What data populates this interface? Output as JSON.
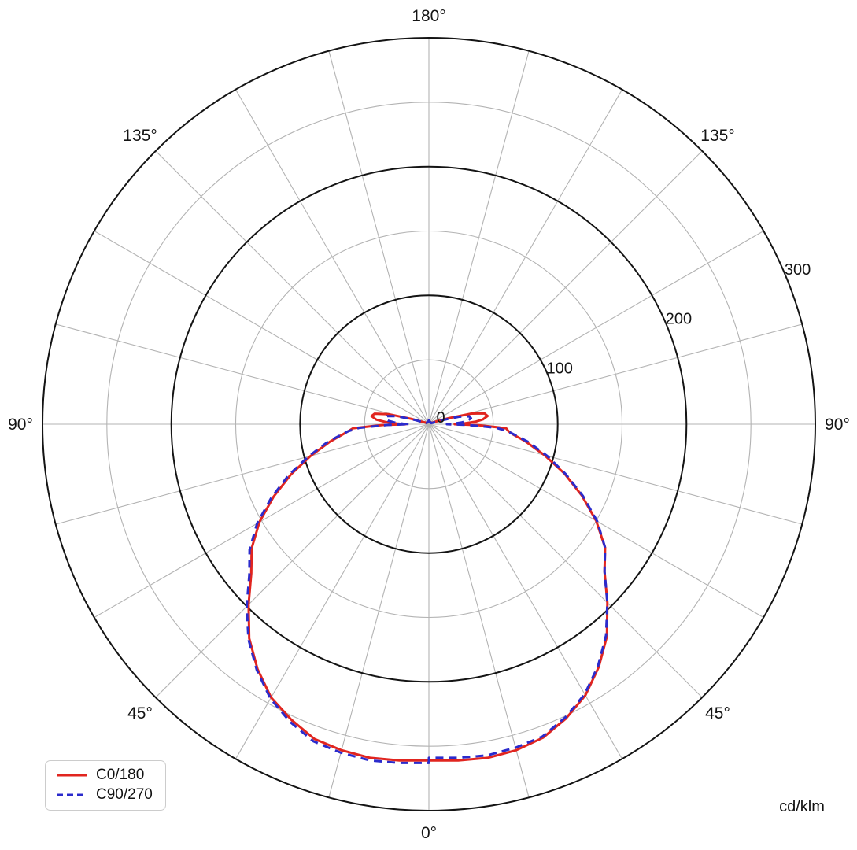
{
  "chart_data": {
    "type": "polar",
    "subtype": "luminous-intensity-distribution",
    "title": "",
    "unit": "cd/klm",
    "radial_axis": {
      "max": 300,
      "major_ticks": [
        0,
        100,
        200,
        300
      ],
      "minor_ticks": [
        50,
        150,
        250
      ],
      "tick_label_ray_deg_above_horizontal": 22.5
    },
    "angle_grid_step_deg": 15,
    "angle_labels": [
      {
        "text": "0°",
        "gamma_deg": 0,
        "sides": [
          "center"
        ]
      },
      {
        "text": "45°",
        "gamma_deg": 45,
        "sides": [
          "right",
          "left"
        ]
      },
      {
        "text": "90°",
        "gamma_deg": 90,
        "sides": [
          "right",
          "left"
        ]
      },
      {
        "text": "135°",
        "gamma_deg": 135,
        "sides": [
          "right",
          "left"
        ]
      },
      {
        "text": "180°",
        "gamma_deg": 180,
        "sides": [
          "center"
        ]
      }
    ],
    "grid": {
      "major_color": "#141414",
      "minor_color": "#b3b3b3",
      "text_color": "#141414"
    },
    "gamma_deg": [
      0,
      5,
      10,
      15,
      20,
      25,
      30,
      35,
      40,
      45,
      50,
      55,
      60,
      65,
      70,
      75,
      80,
      83,
      85,
      87,
      89,
      90,
      91,
      93,
      95,
      98,
      101,
      104,
      107,
      110,
      115,
      120,
      135,
      150,
      165,
      180
    ],
    "series": [
      {
        "name": "C0/180",
        "color": "#e1251f",
        "line_style": "solid",
        "right_cd_klm": [
          261,
          262,
          263,
          262,
          259,
          252,
          243,
          230,
          215,
          196,
          178,
          167,
          150,
          131,
          112,
          93,
          76,
          66,
          62,
          60,
          38,
          20,
          26,
          36,
          42,
          46,
          44,
          34,
          16,
          6,
          3,
          2,
          2,
          2,
          2,
          3
        ],
        "left_cd_klm": [
          261,
          262,
          263,
          262,
          260,
          253,
          245,
          232,
          217,
          198,
          180,
          168,
          152,
          133,
          114,
          95,
          78,
          68,
          63,
          59,
          36,
          18,
          24,
          34,
          41,
          45,
          43,
          32,
          14,
          5,
          3,
          2,
          2,
          2,
          2,
          3
        ]
      },
      {
        "name": "C90/270",
        "color": "#2b2bcc",
        "line_style": "dashed",
        "right_cd_klm": [
          259,
          260,
          261,
          260,
          258,
          251,
          242,
          229,
          214,
          196,
          178,
          167,
          151,
          132,
          113,
          95,
          78,
          67,
          61,
          52,
          30,
          14,
          18,
          25,
          30,
          33,
          32,
          24,
          10,
          4,
          2,
          2,
          2,
          2,
          2,
          3
        ],
        "left_cd_klm": [
          263,
          264,
          265,
          264,
          262,
          255,
          246,
          233,
          218,
          200,
          182,
          170,
          154,
          135,
          116,
          97,
          80,
          69,
          63,
          54,
          32,
          15,
          20,
          27,
          32,
          34,
          33,
          26,
          11,
          4,
          2,
          2,
          2,
          2,
          2,
          3
        ]
      }
    ],
    "legend": {
      "position": "bottom-left",
      "entries": [
        "C0/180",
        "C90/270"
      ]
    }
  }
}
